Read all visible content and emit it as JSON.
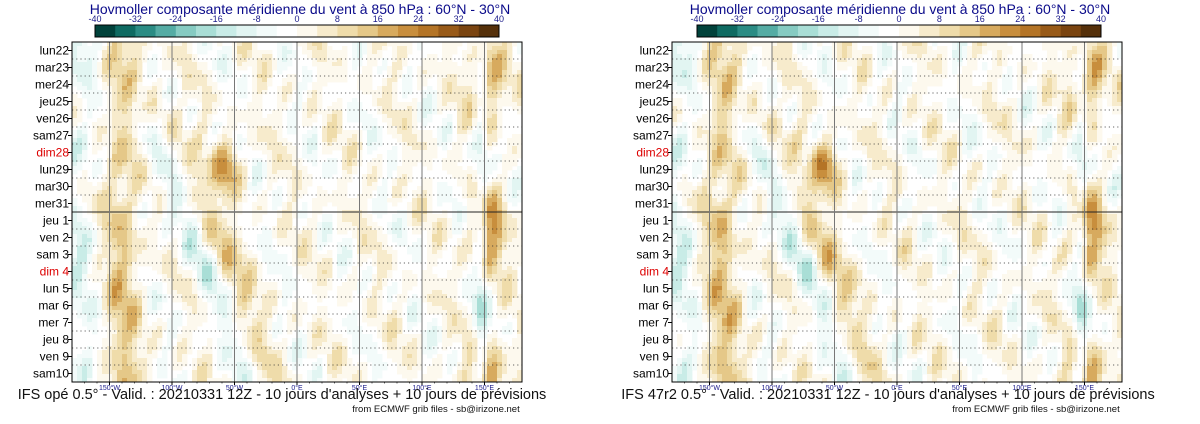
{
  "panels": [
    {
      "title": "Hovmoller composante méridienne du vent à 850 hPa : 60°N - 30°N",
      "footer": "IFS opé 0.5° - Valid. : 20210331 12Z - 10 jours d'analyses + 10 jours de prévisions",
      "credit": "from ECMWF grib files - sb@irizone.net"
    },
    {
      "title": "Hovmoller composante méridienne du vent à 850 hPa : 60°N - 30°N",
      "footer": "IFS 47r2 0.5° - Valid. : 20210331 12Z - 10 jours d'analyses + 10 jours de prévisions",
      "credit": "from ECMWF grib files - sb@irizone.net"
    }
  ],
  "chart_data": {
    "type": "heatmap",
    "variable": "composante méridienne du vent à 850 hPa",
    "latitude_band": "60°N - 30°N",
    "colorbar": {
      "levels": [
        -40,
        -36,
        -32,
        -28,
        -24,
        -20,
        -16,
        -12,
        -8,
        -4,
        0,
        4,
        8,
        12,
        16,
        20,
        24,
        28,
        32,
        36,
        40
      ],
      "tick_labels": [
        "-40",
        "-32",
        "-24",
        "-16",
        "-8",
        "0",
        "8",
        "16",
        "24",
        "32",
        "40"
      ],
      "colors": [
        "#01423b",
        "#0f6b62",
        "#2b8c84",
        "#55aca4",
        "#86cbc2",
        "#a9ded6",
        "#c9ece7",
        "#e2f5f2",
        "#f3fbfa",
        "#ffffff",
        "#fdf9ee",
        "#f7ebcc",
        "#efdcaa",
        "#e5c888",
        "#d7aa5e",
        "#c88e3d",
        "#b47426",
        "#985a18",
        "#7a4410",
        "#55300a"
      ]
    },
    "y_labels": [
      "lun22",
      "mar23",
      "mer24",
      "jeu25",
      "ven26",
      "sam27",
      "dim28",
      "lun29",
      "mar30",
      "mer31",
      "jeu 1",
      "ven 2",
      "sam 3",
      "dim 4",
      "lun 5",
      "mar 6",
      "mer 7",
      "jeu 8",
      "ven 9",
      "sam10"
    ],
    "sunday_labels": [
      "dim28",
      "dim 4"
    ],
    "sunday_color": "#dd0000",
    "analysis_forecast_boundary": "jeu 1",
    "x_range": [
      -180,
      180
    ],
    "x_ticks": [
      {
        "lon": -150,
        "label": "150°W"
      },
      {
        "lon": -100,
        "label": "100°W"
      },
      {
        "lon": -50,
        "label": "50°W"
      },
      {
        "lon": 0,
        "label": "0°E"
      },
      {
        "lon": 50,
        "label": "50°E"
      },
      {
        "lon": 100,
        "label": "100°E"
      },
      {
        "lon": 150,
        "label": "150°E"
      }
    ]
  }
}
